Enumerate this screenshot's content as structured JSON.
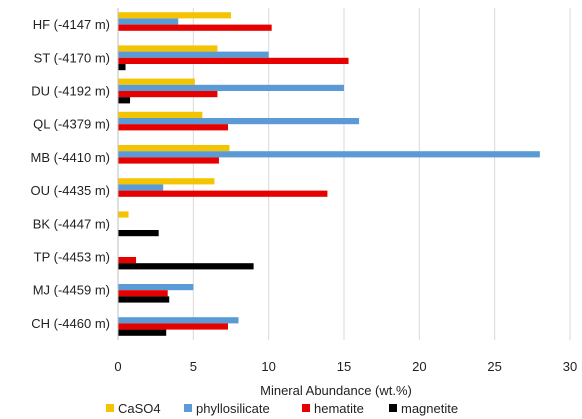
{
  "chart_data": {
    "type": "bar",
    "orientation": "horizontal",
    "title": "",
    "xlabel": "Mineral Abundance (wt.%)",
    "ylabel": "",
    "xlim": [
      0,
      30
    ],
    "xticks": [
      0,
      5,
      10,
      15,
      20,
      25,
      30
    ],
    "grid": true,
    "legend_position": "bottom",
    "categories": [
      "HF (-4147 m)",
      "ST (-4170 m)",
      "DU (-4192 m)",
      "QL (-4379 m)",
      "MB (-4410 m)",
      "OU (-4435 m)",
      "BK (-4447 m)",
      "TP (-4453 m)",
      "MJ (-4459 m)",
      "CH (-4460 m)"
    ],
    "series": [
      {
        "name": "CaSO4",
        "color": "#f5c400",
        "values": [
          7.5,
          6.6,
          5.1,
          5.6,
          7.4,
          6.4,
          0.7,
          0.0,
          0.0,
          0.0
        ]
      },
      {
        "name": "phyllosilicate",
        "color": "#5b9bd5",
        "values": [
          4.0,
          10.0,
          15.0,
          16.0,
          28.0,
          3.0,
          0.0,
          0.0,
          5.0,
          8.0
        ]
      },
      {
        "name": "hematite",
        "color": "#e60000",
        "values": [
          10.2,
          15.3,
          6.6,
          7.3,
          6.7,
          13.9,
          0.0,
          1.2,
          3.3,
          7.3
        ]
      },
      {
        "name": "magnetite",
        "color": "#000000",
        "values": [
          0.0,
          0.5,
          0.8,
          0.0,
          0.0,
          0.0,
          2.7,
          9.0,
          3.4,
          3.2
        ]
      }
    ]
  }
}
